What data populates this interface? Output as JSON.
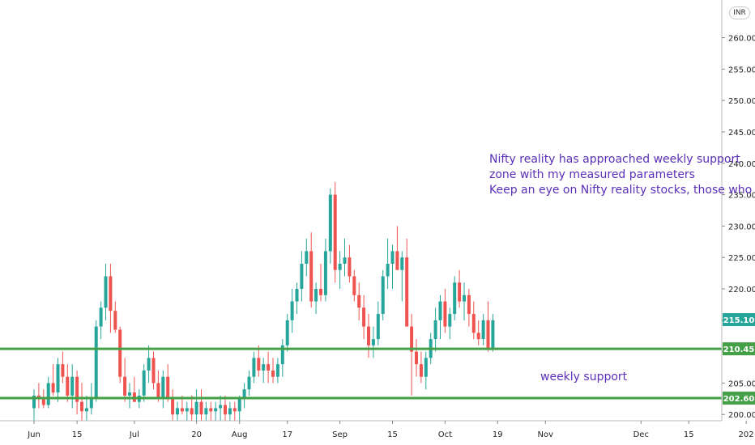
{
  "currency_button": "INR",
  "chart_data": {
    "type": "candlestick",
    "title": "",
    "xlabel": "",
    "ylabel": "",
    "ylim": [
      199,
      266
    ],
    "y_ticks": [
      "200.00",
      "205.00",
      "210.00",
      "215.00",
      "220.00",
      "225.00",
      "230.00",
      "235.00",
      "240.00",
      "245.00",
      "250.00",
      "255.00",
      "260.00"
    ],
    "x_ticks": [
      {
        "label": "Jun",
        "bar": 0
      },
      {
        "label": "15",
        "bar": 9
      },
      {
        "label": "Jul",
        "bar": 21
      },
      {
        "label": "20",
        "bar": 34
      },
      {
        "label": "Aug",
        "bar": 43
      },
      {
        "label": "17",
        "bar": 53
      },
      {
        "label": "Sep",
        "bar": 64
      },
      {
        "label": "15",
        "bar": 75
      },
      {
        "label": "Oct",
        "bar": 86
      },
      {
        "label": "19",
        "bar": 97
      },
      {
        "label": "Nov",
        "bar": 107
      },
      {
        "label": "Dec",
        "bar": 127
      },
      {
        "label": "15",
        "bar": 137
      },
      {
        "label": "202",
        "bar": 149
      }
    ],
    "bars": [
      [
        201,
        204,
        199,
        203
      ],
      [
        203,
        205,
        201,
        202.5
      ],
      [
        202.5,
        204,
        201,
        201.5
      ],
      [
        201.5,
        206,
        201,
        205
      ],
      [
        205,
        208,
        203,
        203.5
      ],
      [
        203.5,
        209,
        202,
        208
      ],
      [
        208,
        210,
        205,
        206
      ],
      [
        206,
        208,
        202,
        203
      ],
      [
        203,
        208,
        201,
        206
      ],
      [
        206,
        207,
        200,
        202
      ],
      [
        202,
        205,
        199,
        200.5
      ],
      [
        200.5,
        203,
        199,
        201
      ],
      [
        201,
        205,
        200,
        202.5
      ],
      [
        202.5,
        215,
        202,
        214
      ],
      [
        214,
        218,
        212,
        217
      ],
      [
        217,
        224,
        215,
        222
      ],
      [
        222,
        224,
        213,
        216.5
      ],
      [
        216.5,
        218,
        213,
        213.5
      ],
      [
        213.5,
        214,
        205,
        206
      ],
      [
        206,
        209,
        202,
        203
      ],
      [
        203,
        205,
        201,
        203.5
      ],
      [
        203.5,
        206,
        202,
        202
      ],
      [
        202,
        204,
        201,
        203
      ],
      [
        203,
        208,
        202,
        207
      ],
      [
        207,
        211,
        205,
        209
      ],
      [
        209,
        210,
        204,
        205
      ],
      [
        205,
        207,
        202,
        202.5
      ],
      [
        202.5,
        207,
        201,
        206
      ],
      [
        206,
        208,
        202,
        202.5
      ],
      [
        202.5,
        204,
        199,
        200
      ],
      [
        200,
        202,
        199,
        201
      ],
      [
        201,
        203,
        200,
        200.5
      ],
      [
        200.5,
        202,
        199,
        201
      ],
      [
        201,
        203,
        199,
        200
      ],
      [
        200,
        204,
        199,
        202
      ],
      [
        202,
        204,
        199,
        200
      ],
      [
        200,
        202,
        199,
        201
      ],
      [
        201,
        202,
        199,
        200.5
      ],
      [
        200.5,
        202,
        199,
        201
      ],
      [
        201,
        203,
        199,
        201.5
      ],
      [
        201.5,
        203,
        199,
        200
      ],
      [
        200,
        202,
        199,
        201
      ],
      [
        201,
        202,
        199,
        200.5
      ],
      [
        200.5,
        203,
        199,
        202.5
      ],
      [
        202.5,
        205,
        201,
        204
      ],
      [
        204,
        207,
        203,
        206
      ],
      [
        206,
        210,
        205,
        209
      ],
      [
        209,
        211,
        206,
        207
      ],
      [
        207,
        209,
        205,
        208
      ],
      [
        208,
        210,
        205,
        207
      ],
      [
        207,
        209,
        205,
        206
      ],
      [
        206,
        209,
        205,
        208
      ],
      [
        208,
        212,
        206,
        211
      ],
      [
        211,
        216,
        210,
        215
      ],
      [
        215,
        220,
        213,
        218
      ],
      [
        218,
        221,
        216,
        220
      ],
      [
        220,
        226,
        218,
        224
      ],
      [
        224,
        228,
        222,
        226
      ],
      [
        226,
        229,
        217,
        218
      ],
      [
        218,
        221,
        216,
        220
      ],
      [
        220,
        224,
        218,
        219
      ],
      [
        219,
        228,
        218,
        226
      ],
      [
        226,
        236,
        224,
        235
      ],
      [
        235,
        237,
        221,
        223
      ],
      [
        223,
        226,
        220,
        224
      ],
      [
        224,
        228,
        222,
        225
      ],
      [
        225,
        227,
        221,
        222
      ],
      [
        222,
        223,
        218,
        219
      ],
      [
        219,
        221,
        215,
        217
      ],
      [
        217,
        219,
        212,
        214
      ],
      [
        214,
        216,
        209,
        211
      ],
      [
        211,
        214,
        209,
        212
      ],
      [
        212,
        218,
        211,
        216
      ],
      [
        216,
        223,
        215,
        222
      ],
      [
        222,
        228,
        220,
        224
      ],
      [
        224,
        227,
        220,
        226
      ],
      [
        226,
        230,
        223,
        223
      ],
      [
        223,
        226,
        218,
        225
      ],
      [
        225,
        228,
        214,
        214
      ],
      [
        214,
        216,
        203,
        210
      ],
      [
        210,
        212,
        206,
        208
      ],
      [
        208,
        210,
        205,
        206
      ],
      [
        206,
        210,
        204,
        209
      ],
      [
        209,
        213,
        208,
        212
      ],
      [
        212,
        217,
        210,
        215
      ],
      [
        215,
        219,
        212,
        218
      ],
      [
        218,
        220,
        213,
        214
      ],
      [
        214,
        217,
        212,
        216
      ],
      [
        216,
        222,
        215,
        221
      ],
      [
        221,
        223,
        217,
        218
      ],
      [
        218,
        221,
        215,
        219
      ],
      [
        219,
        220,
        214,
        216
      ],
      [
        216,
        218,
        212,
        213
      ],
      [
        213,
        215,
        211,
        212
      ],
      [
        212,
        216,
        211,
        215
      ],
      [
        215,
        218,
        210,
        210.5
      ],
      [
        210.5,
        216,
        210,
        215
      ]
    ],
    "horizontal_lines": [
      {
        "value": 210.45,
        "label": "210.45",
        "color": "#43a047"
      },
      {
        "value": 202.6,
        "label": "202.60",
        "color": "#43a047"
      }
    ],
    "last_price": {
      "value": 215.1,
      "label": "215.10",
      "color": "#26a69a"
    },
    "annotations": [
      "Nifty reality has  approached weekly support",
      "zone with my measured parameters",
      "Keep an eye on Nifty reality stocks, those who inves",
      "weekly support"
    ],
    "colors": {
      "up": "#26a69a",
      "down": "#ef5350"
    }
  }
}
